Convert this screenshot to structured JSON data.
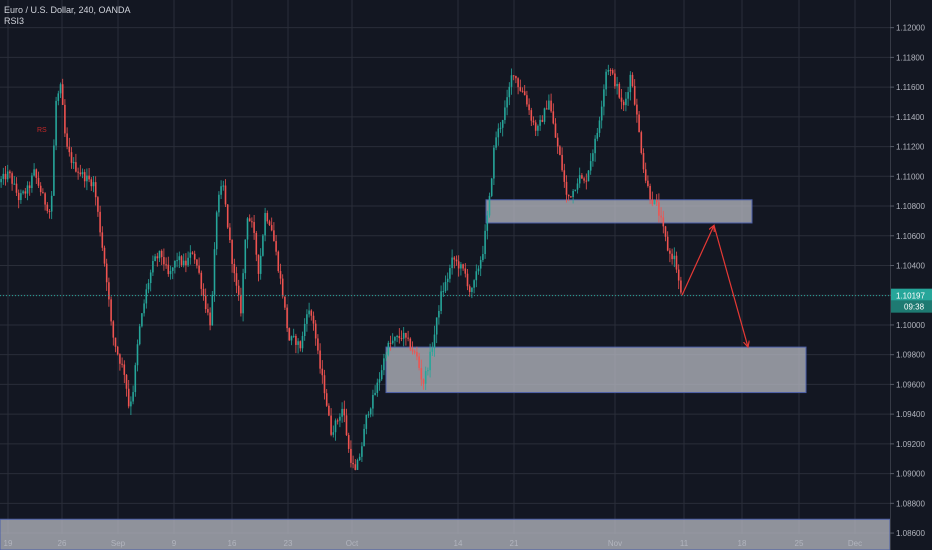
{
  "chart_data": {
    "type": "candlestick",
    "title": "Euro / U.S. Dollar, 240, OANDA",
    "indicator": "RSI3",
    "marker_label": "RS",
    "last_price": "1.10197",
    "countdown": "09:38",
    "y_range": [
      1.08486,
      1.12186
    ],
    "x_ticks": [
      "19",
      "26",
      "Sep",
      "9",
      "16",
      "23",
      "Oct",
      "14",
      "21",
      "Nov",
      "11",
      "18",
      "25",
      "Dec"
    ],
    "y_ticks": [
      "1.12000",
      "1.11800",
      "1.11600",
      "1.11400",
      "1.11200",
      "1.11000",
      "1.10800",
      "1.10600",
      "1.10400",
      "1.10200",
      "1.10000",
      "1.09800",
      "1.09600",
      "1.09400",
      "1.09200",
      "1.09000",
      "1.08800",
      "1.08600"
    ],
    "price_path": [
      [
        0,
        1.1096
      ],
      [
        10,
        1.1102
      ],
      [
        20,
        1.1085
      ],
      [
        30,
        1.1092
      ],
      [
        35,
        1.1103
      ],
      [
        45,
        1.1084
      ],
      [
        52,
        1.1075
      ],
      [
        57,
        1.115
      ],
      [
        62,
        1.116
      ],
      [
        67,
        1.112
      ],
      [
        75,
        1.1107
      ],
      [
        85,
        1.11
      ],
      [
        95,
        1.1095
      ],
      [
        102,
        1.106
      ],
      [
        108,
        1.103
      ],
      [
        113,
        1.0995
      ],
      [
        120,
        1.0978
      ],
      [
        126,
        1.0967
      ],
      [
        130,
        1.0945
      ],
      [
        134,
        1.0955
      ],
      [
        140,
        1.0995
      ],
      [
        148,
        1.1025
      ],
      [
        155,
        1.1043
      ],
      [
        162,
        1.1048
      ],
      [
        170,
        1.1032
      ],
      [
        178,
        1.1045
      ],
      [
        186,
        1.104
      ],
      [
        194,
        1.105
      ],
      [
        200,
        1.1035
      ],
      [
        206,
        1.1015
      ],
      [
        212,
        1.1
      ],
      [
        218,
        1.108
      ],
      [
        224,
        1.1095
      ],
      [
        230,
        1.106
      ],
      [
        236,
        1.103
      ],
      [
        242,
        1.101
      ],
      [
        248,
        1.1075
      ],
      [
        254,
        1.1065
      ],
      [
        260,
        1.1035
      ],
      [
        266,
        1.1075
      ],
      [
        272,
        1.1068
      ],
      [
        278,
        1.1045
      ],
      [
        284,
        1.102
      ],
      [
        290,
        1.099
      ],
      [
        296,
        1.099
      ],
      [
        302,
        1.0985
      ],
      [
        308,
        1.101
      ],
      [
        314,
        1.1005
      ],
      [
        320,
        1.0975
      ],
      [
        326,
        1.0955
      ],
      [
        332,
        1.0928
      ],
      [
        338,
        1.0935
      ],
      [
        344,
        1.0945
      ],
      [
        350,
        1.0915
      ],
      [
        356,
        1.09
      ],
      [
        362,
        1.0915
      ],
      [
        368,
        1.094
      ],
      [
        374,
        1.095
      ],
      [
        380,
        1.0963
      ],
      [
        388,
        1.0985
      ],
      [
        396,
        1.099
      ],
      [
        404,
        1.0993
      ],
      [
        412,
        1.0985
      ],
      [
        418,
        1.0978
      ],
      [
        424,
        1.096
      ],
      [
        430,
        1.0975
      ],
      [
        436,
        1.0995
      ],
      [
        442,
        1.102
      ],
      [
        448,
        1.103
      ],
      [
        454,
        1.1045
      ],
      [
        460,
        1.104
      ],
      [
        466,
        1.1035
      ],
      [
        472,
        1.102
      ],
      [
        478,
        1.1035
      ],
      [
        484,
        1.105
      ],
      [
        490,
        1.108
      ],
      [
        496,
        1.1125
      ],
      [
        502,
        1.1135
      ],
      [
        508,
        1.115
      ],
      [
        514,
        1.1172
      ],
      [
        520,
        1.116
      ],
      [
        526,
        1.1155
      ],
      [
        532,
        1.114
      ],
      [
        538,
        1.113
      ],
      [
        544,
        1.114
      ],
      [
        550,
        1.1152
      ],
      [
        556,
        1.1128
      ],
      [
        562,
        1.111
      ],
      [
        568,
        1.1085
      ],
      [
        574,
        1.109
      ],
      [
        580,
        1.11
      ],
      [
        586,
        1.1095
      ],
      [
        592,
        1.1112
      ],
      [
        598,
        1.1128
      ],
      [
        604,
        1.1155
      ],
      [
        608,
        1.1175
      ],
      [
        612,
        1.117
      ],
      [
        618,
        1.116
      ],
      [
        624,
        1.1145
      ],
      [
        628,
        1.1155
      ],
      [
        632,
        1.117
      ],
      [
        636,
        1.115
      ],
      [
        640,
        1.113
      ],
      [
        646,
        1.11
      ],
      [
        652,
        1.1085
      ],
      [
        658,
        1.108
      ],
      [
        664,
        1.1065
      ],
      [
        670,
        1.1048
      ],
      [
        676,
        1.1045
      ],
      [
        682,
        1.102
      ]
    ],
    "zones": [
      {
        "x0": 486,
        "x1": 752,
        "y_top": 1.10842,
        "y_bottom": 1.10686
      },
      {
        "x0": 386,
        "x1": 806,
        "y_top": 1.09851,
        "y_bottom": 1.09545
      },
      {
        "x0": 0,
        "x1": 890,
        "y_top": 1.08693,
        "y_bottom": 1.08486
      }
    ],
    "projection": [
      [
        682,
        1.102
      ],
      [
        714,
        1.1067
      ],
      [
        748,
        1.09851
      ]
    ],
    "grid": true,
    "colors": {
      "background": "#131722",
      "grid": "#2a2e39",
      "up": "#26a69a",
      "down": "#ef5350",
      "zone": "#b2b5be",
      "zone_border": "#4a5ea8",
      "last_price_line": "#26a69a",
      "arrow": "#e53935",
      "text": "#b2b5be"
    }
  }
}
